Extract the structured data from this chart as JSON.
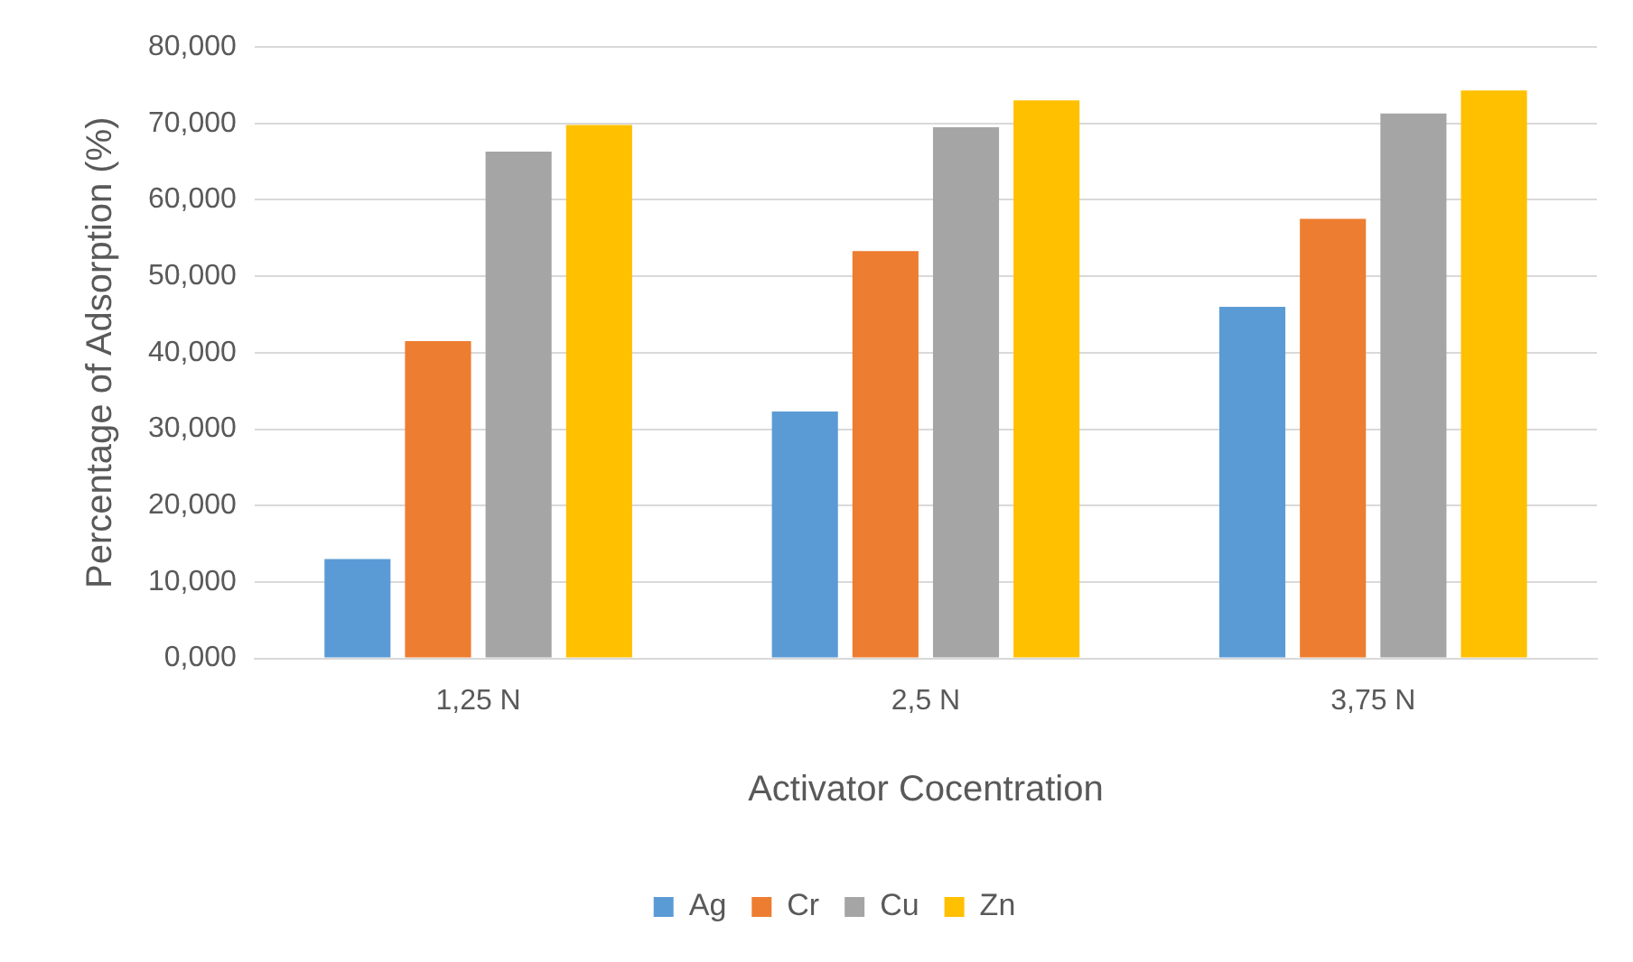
{
  "chart_data": {
    "type": "bar",
    "xlabel": "Activator Cocentration",
    "ylabel": "Percentage of Adsorption (%)",
    "categories": [
      "1,25 N",
      "2,5 N",
      "3,75 N"
    ],
    "series": [
      {
        "name": "Ag",
        "color": "#5b9bd5",
        "values": [
          13.0,
          32.3,
          46.0
        ]
      },
      {
        "name": "Cr",
        "color": "#ed7d31",
        "values": [
          41.5,
          53.3,
          57.5
        ]
      },
      {
        "name": "Cu",
        "color": "#a5a5a5",
        "values": [
          66.3,
          69.5,
          71.3
        ]
      },
      {
        "name": "Zn",
        "color": "#ffc000",
        "values": [
          69.8,
          73.0,
          74.3
        ]
      }
    ],
    "ylim": [
      0,
      80
    ],
    "yticks": [
      {
        "value": 0,
        "label": "0,000"
      },
      {
        "value": 10,
        "label": "10,000"
      },
      {
        "value": 20,
        "label": "20,000"
      },
      {
        "value": 30,
        "label": "30,000"
      },
      {
        "value": 40,
        "label": "40,000"
      },
      {
        "value": 50,
        "label": "50,000"
      },
      {
        "value": 60,
        "label": "60,000"
      },
      {
        "value": 70,
        "label": "70,000"
      },
      {
        "value": 80,
        "label": "80,000"
      }
    ],
    "grid": "y",
    "legend": "bottom"
  }
}
